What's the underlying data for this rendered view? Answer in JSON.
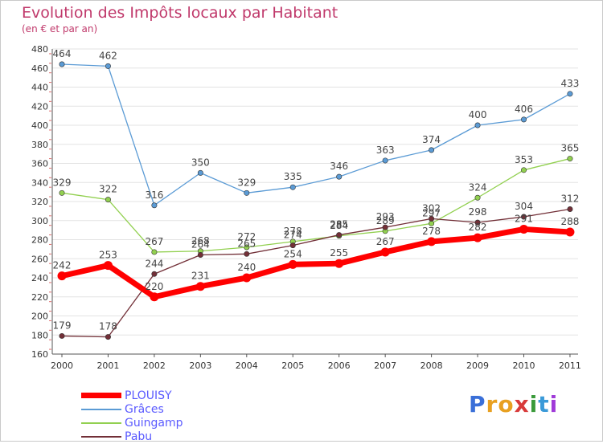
{
  "title": "Evolution des Impôts locaux par Habitant",
  "subtitle": "(en € et par an)",
  "logo_text": "Proxiti",
  "chart_data": {
    "type": "line",
    "title": "Evolution des Impôts locaux par Habitant",
    "subtitle": "(en € et par an)",
    "xlabel": "",
    "ylabel": "",
    "x": [
      "2000",
      "2001",
      "2002",
      "2003",
      "2004",
      "2005",
      "2006",
      "2007",
      "2008",
      "2009",
      "2010",
      "2011"
    ],
    "ylim": [
      160,
      480
    ],
    "yticks": [
      160,
      180,
      200,
      220,
      240,
      260,
      280,
      300,
      320,
      340,
      360,
      380,
      400,
      420,
      440,
      460,
      480
    ],
    "grid": true,
    "legend_position": "bottom-left",
    "series": [
      {
        "name": "PLOUISY",
        "color": "#ff0000",
        "values": [
          242,
          253,
          220,
          231,
          240,
          254,
          255,
          267,
          278,
          282,
          291,
          288
        ],
        "labels": [
          "242",
          "253",
          "220",
          "231",
          "240",
          "254",
          "255",
          "267",
          "278",
          "282",
          "291",
          "288"
        ]
      },
      {
        "name": "Grâces",
        "color": "#5b9bd5",
        "values": [
          464,
          462,
          316,
          350,
          329,
          335,
          346,
          363,
          374,
          400,
          406,
          433
        ],
        "labels": [
          "464",
          "462",
          "316",
          "350",
          "329",
          "335",
          "346",
          "363",
          "374",
          "400",
          "406",
          "433"
        ]
      },
      {
        "name": "Guingamp",
        "color": "#92d050",
        "values": [
          329,
          322,
          267,
          268,
          272,
          278,
          284,
          289,
          297,
          324,
          353,
          365
        ],
        "labels": [
          "329",
          "322",
          "267",
          "268",
          "272",
          "278",
          "284",
          "289",
          "297",
          "324",
          "353",
          "365"
        ]
      },
      {
        "name": "Pabu",
        "color": "#722f37",
        "values": [
          179,
          178,
          244,
          264,
          265,
          274,
          285,
          293,
          302,
          298,
          304,
          312
        ],
        "labels": [
          "179",
          "178",
          "244",
          "264",
          "265",
          "274",
          "285",
          "293",
          "302",
          "298",
          "304",
          "312"
        ]
      }
    ]
  }
}
